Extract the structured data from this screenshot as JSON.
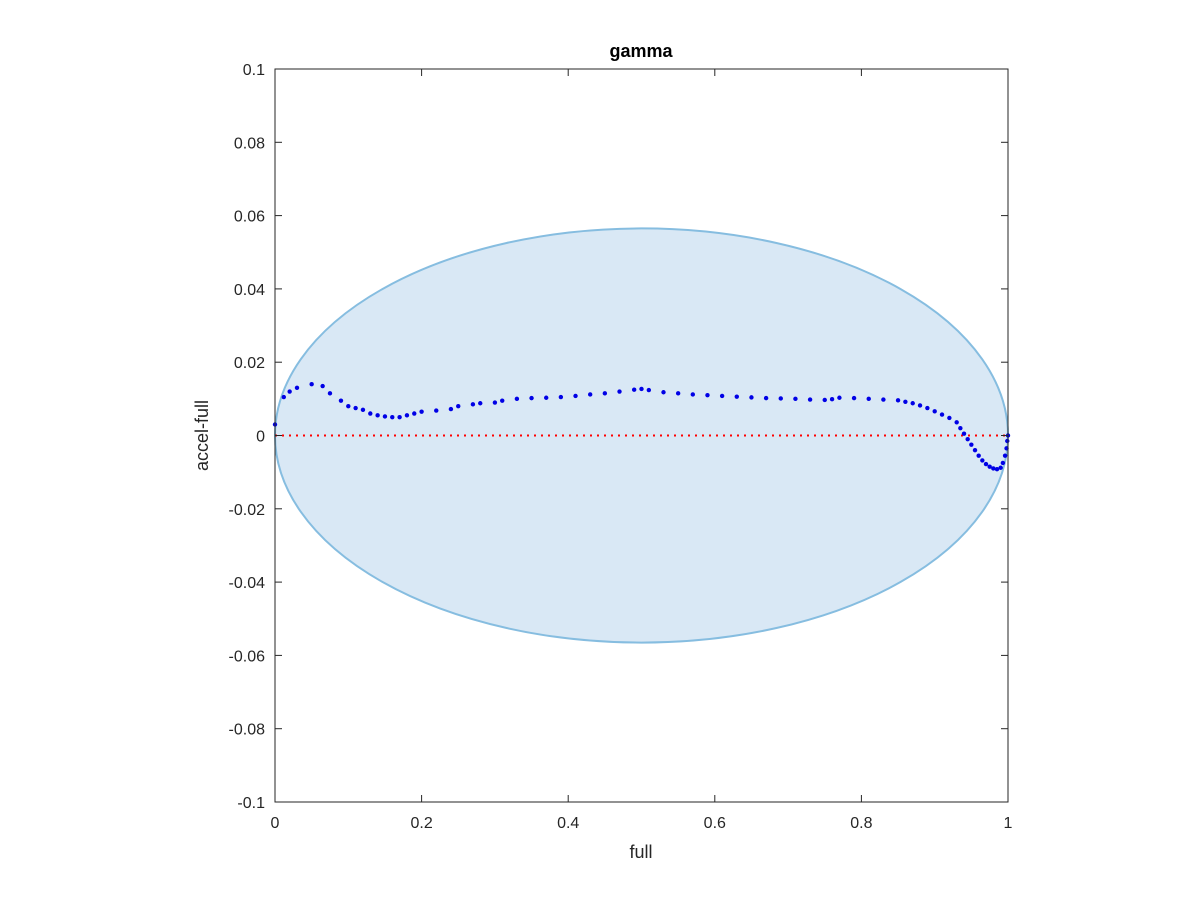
{
  "chart_data": {
    "type": "scatter",
    "title": "gamma",
    "xlabel": "full",
    "ylabel": "accel-full",
    "xlim": [
      0,
      1
    ],
    "ylim": [
      -0.1,
      0.1
    ],
    "x_ticks": [
      "0",
      "0.2",
      "0.4",
      "0.6",
      "0.8",
      "1"
    ],
    "y_ticks": [
      "0.1",
      "0.08",
      "0.06",
      "0.04",
      "0.02",
      "0",
      "-0.02",
      "-0.04",
      "-0.06",
      "-0.08",
      "-0.1"
    ],
    "x_tick_values": [
      0,
      0.2,
      0.4,
      0.6,
      0.8,
      1
    ],
    "y_tick_values": [
      0.1,
      0.08,
      0.06,
      0.04,
      0.02,
      0,
      -0.02,
      -0.04,
      -0.06,
      -0.08,
      -0.1
    ],
    "grid": false,
    "reference_line": {
      "y": 0,
      "style": "dotted",
      "color": "#ff0000"
    },
    "confidence_ellipse": {
      "center": [
        0.5,
        0
      ],
      "semi_axis_x": 0.5,
      "semi_axis_y": 0.0565,
      "fill": "#d9e8f5",
      "stroke": "#86bde0"
    },
    "series": [
      {
        "color": "#0000e6",
        "points": [
          [
            0.0,
            0.003
          ],
          [
            0.012,
            0.0105
          ],
          [
            0.02,
            0.012
          ],
          [
            0.03,
            0.013
          ],
          [
            0.05,
            0.014
          ],
          [
            0.065,
            0.0135
          ],
          [
            0.075,
            0.0115
          ],
          [
            0.09,
            0.0095
          ],
          [
            0.1,
            0.008
          ],
          [
            0.11,
            0.0075
          ],
          [
            0.12,
            0.007
          ],
          [
            0.13,
            0.006
          ],
          [
            0.14,
            0.0055
          ],
          [
            0.15,
            0.0052
          ],
          [
            0.16,
            0.005
          ],
          [
            0.17,
            0.005
          ],
          [
            0.18,
            0.0055
          ],
          [
            0.19,
            0.006
          ],
          [
            0.2,
            0.0065
          ],
          [
            0.22,
            0.0068
          ],
          [
            0.24,
            0.0072
          ],
          [
            0.25,
            0.008
          ],
          [
            0.27,
            0.0085
          ],
          [
            0.28,
            0.0088
          ],
          [
            0.3,
            0.009
          ],
          [
            0.31,
            0.0095
          ],
          [
            0.33,
            0.01
          ],
          [
            0.35,
            0.0102
          ],
          [
            0.37,
            0.0103
          ],
          [
            0.39,
            0.0105
          ],
          [
            0.41,
            0.0108
          ],
          [
            0.43,
            0.0112
          ],
          [
            0.45,
            0.0115
          ],
          [
            0.47,
            0.012
          ],
          [
            0.49,
            0.0125
          ],
          [
            0.5,
            0.0127
          ],
          [
            0.51,
            0.0124
          ],
          [
            0.53,
            0.0118
          ],
          [
            0.55,
            0.0115
          ],
          [
            0.57,
            0.0112
          ],
          [
            0.59,
            0.011
          ],
          [
            0.61,
            0.0108
          ],
          [
            0.63,
            0.0106
          ],
          [
            0.65,
            0.0104
          ],
          [
            0.67,
            0.0102
          ],
          [
            0.69,
            0.0101
          ],
          [
            0.71,
            0.01
          ],
          [
            0.73,
            0.0098
          ],
          [
            0.75,
            0.0097
          ],
          [
            0.76,
            0.0099
          ],
          [
            0.77,
            0.0103
          ],
          [
            0.79,
            0.0102
          ],
          [
            0.81,
            0.01
          ],
          [
            0.83,
            0.0098
          ],
          [
            0.85,
            0.0096
          ],
          [
            0.86,
            0.0092
          ],
          [
            0.87,
            0.0088
          ],
          [
            0.88,
            0.0082
          ],
          [
            0.89,
            0.0075
          ],
          [
            0.9,
            0.0066
          ],
          [
            0.91,
            0.0057
          ],
          [
            0.92,
            0.0048
          ],
          [
            0.93,
            0.0036
          ],
          [
            0.935,
            0.002
          ],
          [
            0.94,
            0.0005
          ],
          [
            0.945,
            -0.001
          ],
          [
            0.95,
            -0.0025
          ],
          [
            0.955,
            -0.004
          ],
          [
            0.96,
            -0.0055
          ],
          [
            0.965,
            -0.0068
          ],
          [
            0.97,
            -0.0078
          ],
          [
            0.975,
            -0.0085
          ],
          [
            0.98,
            -0.009
          ],
          [
            0.985,
            -0.0092
          ],
          [
            0.99,
            -0.0088
          ],
          [
            0.993,
            -0.0075
          ],
          [
            0.996,
            -0.0055
          ],
          [
            0.998,
            -0.0035
          ],
          [
            0.999,
            -0.0015
          ],
          [
            1.0,
            0.0
          ]
        ]
      }
    ]
  }
}
